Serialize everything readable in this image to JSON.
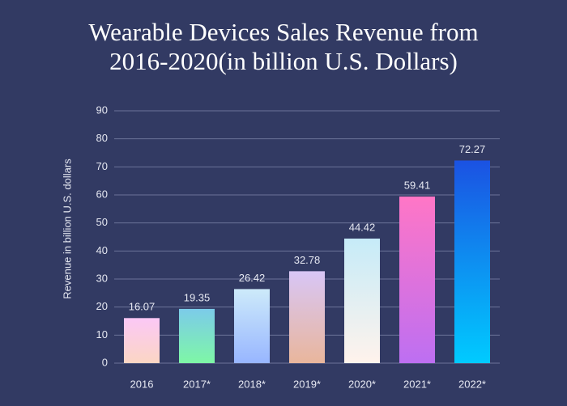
{
  "chart_data": {
    "type": "bar",
    "title": "Wearable Devices Sales Revenue from 2016-2020(in billion U.S. Dollars)",
    "y_label": "Revenue in billion U.S. dollars",
    "categories": [
      "2016",
      "2017*",
      "2018*",
      "2019*",
      "2020*",
      "2021*",
      "2022*"
    ],
    "values": [
      16.07,
      19.35,
      26.42,
      32.78,
      44.42,
      59.41,
      72.27
    ],
    "colors": [
      [
        "#fbc8f6",
        "#fbd6c4"
      ],
      [
        "#7ccbea",
        "#7ef7a6"
      ],
      [
        "#cdeafa",
        "#98b6ff"
      ],
      [
        "#d8c6f6",
        "#e9b69c"
      ],
      [
        "#c6ebf8",
        "#fff3ec"
      ],
      [
        "#ff76c6",
        "#bd6ff2"
      ],
      [
        "#1b52e2",
        "#00cbff"
      ]
    ],
    "ylim": [
      0,
      90
    ],
    "yticks": [
      0,
      10,
      20,
      30,
      40,
      50,
      60,
      70,
      80,
      90
    ],
    "grid": true
  }
}
